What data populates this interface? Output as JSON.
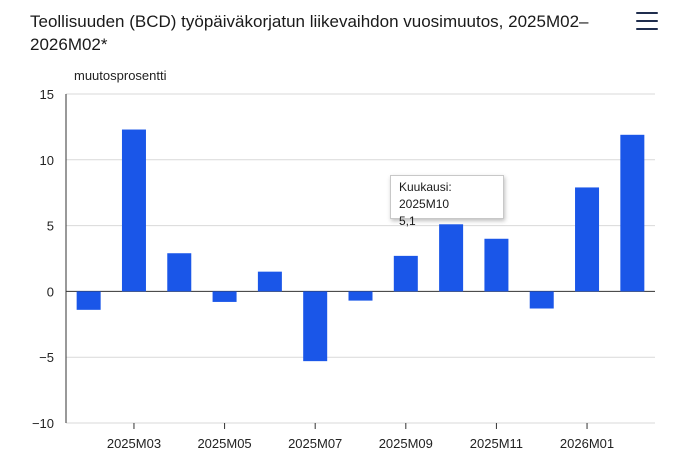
{
  "title": "Teollisuuden (BCD) työpäiväkorjatun liikevaihdon vuosimuutos, 2025M02–2026M02*",
  "menu_icon": "hamburger-menu-icon",
  "colors": {
    "bar": "#1a56e8",
    "grid": "#d9d9d9",
    "axis": "#333333"
  },
  "tooltip": {
    "line1": "Kuukausi: 2025M10",
    "line2": "5,1"
  },
  "chart_data": {
    "type": "bar",
    "ylabel": "muutosprosentti",
    "xlabel": "",
    "categories": [
      "2025M02",
      "2025M03",
      "2025M04",
      "2025M05",
      "2025M06",
      "2025M07",
      "2025M08",
      "2025M09",
      "2025M10",
      "2025M11",
      "2025M12",
      "2026M01",
      "2026M02"
    ],
    "values": [
      -1.4,
      12.3,
      2.9,
      -0.8,
      1.5,
      -5.3,
      -0.7,
      2.7,
      5.1,
      4.0,
      -1.3,
      7.9,
      11.9
    ],
    "x_tick_labels": [
      "2025M03",
      "2025M05",
      "2025M07",
      "2025M09",
      "2025M11",
      "2026M01"
    ],
    "y_ticks": [
      "15",
      "10",
      "5",
      "0",
      "−5",
      "−10"
    ],
    "ylim": [
      -10,
      15
    ],
    "grid": true
  }
}
